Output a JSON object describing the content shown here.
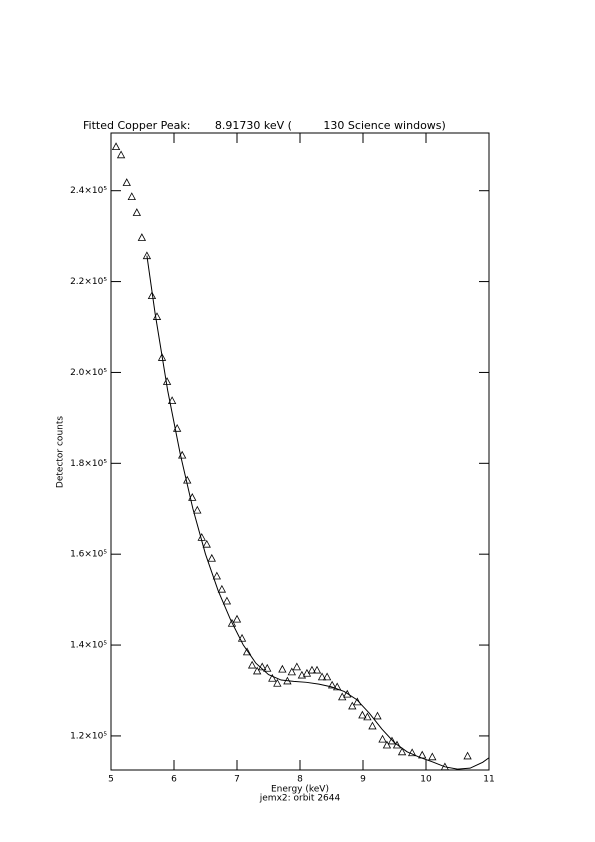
{
  "chart_data": {
    "type": "scatter-fit",
    "title": "Fitted Copper Peak:       8.91730 keV (         130 Science windows)",
    "x_label": "Energy (keV)",
    "subtitle": "jemx2: orbit 2644",
    "y_label": "Detector counts",
    "xlim": [
      5,
      11
    ],
    "xticks": [
      5,
      6,
      7,
      8,
      9,
      10,
      11
    ],
    "ylim": [
      112500,
      252700
    ],
    "yticks": [
      {
        "value": 120000,
        "label": "1.2×10⁵"
      },
      {
        "value": 140000,
        "label": "1.4×10⁵"
      },
      {
        "value": 160000,
        "label": "1.6×10⁵"
      },
      {
        "value": 180000,
        "label": "1.8×10⁵"
      },
      {
        "value": 200000,
        "label": "2.0×10⁵"
      },
      {
        "value": 220000,
        "label": "2.2×10⁵"
      },
      {
        "value": 240000,
        "label": "2.4×10⁵"
      }
    ],
    "series": [
      {
        "kind": "points",
        "color": "#000000",
        "x": [
          5.08,
          5.16,
          5.25,
          5.33,
          5.41,
          5.49,
          5.57,
          5.65,
          5.73,
          5.81,
          5.89,
          5.97,
          6.05,
          6.13,
          6.21,
          6.29,
          6.37,
          6.44,
          6.52,
          6.6,
          6.68,
          6.76,
          6.84,
          6.92,
          7.0,
          7.08,
          7.16,
          7.24,
          7.32,
          7.4,
          7.48,
          7.56,
          7.64,
          7.72,
          7.8,
          7.87,
          7.95,
          8.03,
          8.11,
          8.19,
          8.27,
          8.35,
          8.43,
          8.51,
          8.59,
          8.67,
          8.75,
          8.83,
          8.91,
          8.99,
          9.07,
          9.15,
          9.23,
          9.31,
          9.38,
          9.46,
          9.54,
          9.62,
          9.78,
          9.94,
          10.1,
          10.3,
          10.66
        ],
        "values": [
          249700,
          247900,
          241800,
          238700,
          235200,
          229700,
          225700,
          216900,
          212300,
          203300,
          198000,
          193800,
          187700,
          181800,
          176300,
          172500,
          169700,
          163700,
          162200,
          159100,
          155200,
          152300,
          149700,
          144800,
          145700,
          141500,
          138500,
          135600,
          134300,
          135200,
          134900,
          132700,
          131600,
          134700,
          132100,
          134100,
          135200,
          133400,
          133800,
          134500,
          134500,
          133000,
          133000,
          131200,
          130800,
          128600,
          129200,
          126600,
          127500,
          124600,
          124200,
          122200,
          124400,
          119300,
          118000,
          118900,
          118000,
          116500,
          116300,
          115800,
          115400,
          113200,
          115600
        ]
      },
      {
        "kind": "line",
        "color": "#000000",
        "x": [
          5.57,
          5.7,
          5.9,
          6.1,
          6.3,
          6.5,
          6.7,
          6.9,
          7.1,
          7.3,
          7.5,
          7.7,
          7.9,
          8.1,
          8.3,
          8.5,
          8.7,
          8.9,
          9.1,
          9.3,
          9.5,
          9.7,
          9.9,
          10.1,
          10.3,
          10.5,
          10.7,
          10.9,
          11.0
        ],
        "values": [
          225700,
          213000,
          196000,
          182000,
          170000,
          160000,
          152000,
          145500,
          140000,
          136000,
          133500,
          132300,
          132000,
          131800,
          131400,
          130800,
          129800,
          128000,
          125000,
          121500,
          118500,
          116500,
          115300,
          114300,
          113200,
          112700,
          112900,
          114200,
          115200
        ]
      }
    ]
  }
}
